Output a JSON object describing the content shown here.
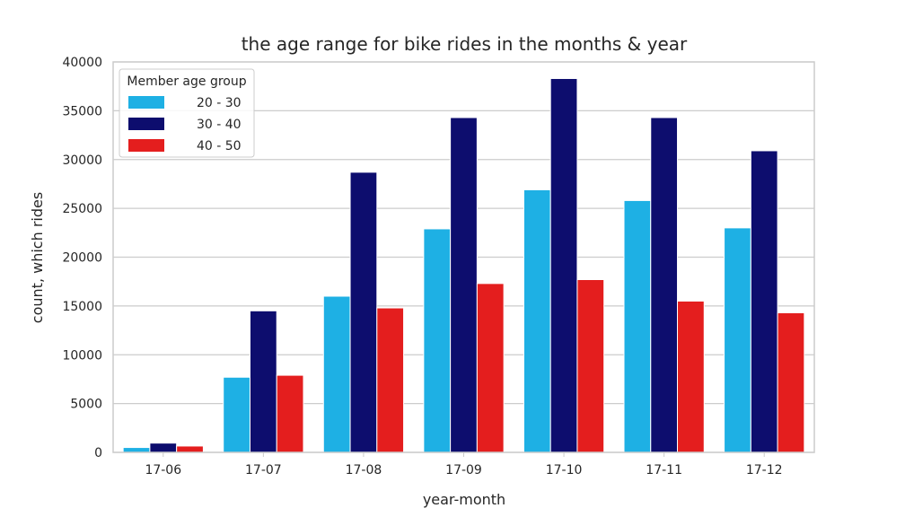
{
  "chart_data": {
    "type": "bar",
    "title": "the age range for bike rides in the months & year",
    "xlabel": "year-month",
    "ylabel": "count, which rides",
    "categories": [
      "17-06",
      "17-07",
      "17-08",
      "17-09",
      "17-10",
      "17-11",
      "17-12"
    ],
    "ylim": [
      0,
      40000
    ],
    "yticks": [
      "0",
      "5000",
      "10000",
      "15000",
      "20000",
      "25000",
      "30000",
      "35000",
      "40000"
    ],
    "grid": "horizontal",
    "legend": {
      "title": "Member age group",
      "position": "top-left"
    },
    "series": [
      {
        "name": "20 - 30",
        "color": "#1eb0e4",
        "values": [
          500,
          7700,
          16000,
          22900,
          26900,
          25800,
          23000
        ]
      },
      {
        "name": "30 - 40",
        "color": "#0d0d6e",
        "values": [
          950,
          14500,
          28700,
          34300,
          38300,
          34300,
          30900
        ]
      },
      {
        "name": "40 - 50",
        "color": "#e41e1e",
        "values": [
          650,
          7900,
          14800,
          17300,
          17700,
          15500,
          14300
        ]
      }
    ]
  }
}
